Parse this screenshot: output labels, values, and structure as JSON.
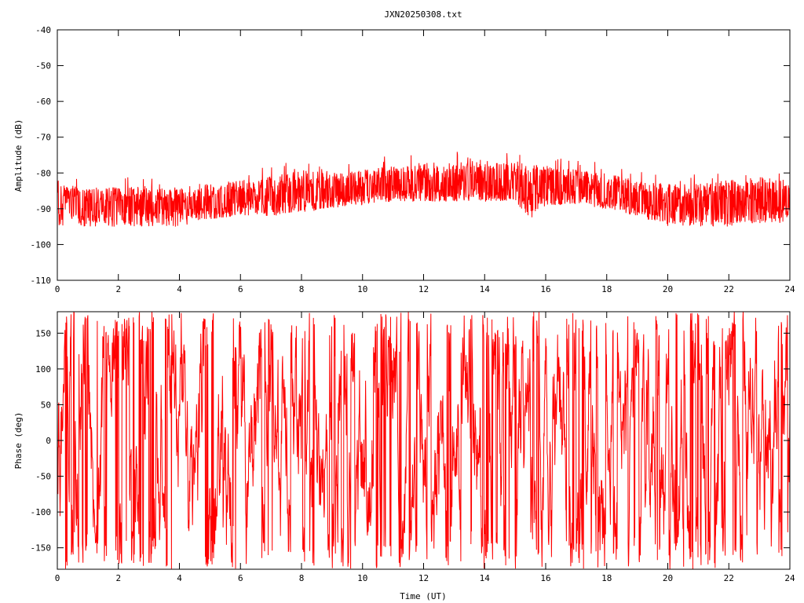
{
  "title": "JXN20250308.txt",
  "colors": {
    "series": "#ff0000",
    "axes": "#000000",
    "background": "#ffffff"
  },
  "chart_data": [
    {
      "type": "line",
      "xlabel": "",
      "ylabel": "Amplitude (dB)",
      "xlim": [
        0,
        24
      ],
      "ylim": [
        -110,
        -40
      ],
      "x_ticks": [
        0,
        2,
        4,
        6,
        8,
        10,
        12,
        14,
        16,
        18,
        20,
        22,
        24
      ],
      "x_tick_labels": [
        "0",
        "2",
        "4",
        "6",
        "8",
        "10",
        "12",
        "14",
        "16",
        "18",
        "20",
        "22",
        "24"
      ],
      "y_ticks": [
        -40,
        -50,
        -60,
        -70,
        -80,
        -90,
        -100,
        -110
      ],
      "y_tick_labels": [
        "-40",
        "-50",
        "-60",
        "-70",
        "-80",
        "-90",
        "-100",
        "-110"
      ],
      "grid": false,
      "series": [
        {
          "x": [
            0,
            1,
            2,
            3,
            4,
            5,
            6,
            7,
            8,
            9,
            10,
            11,
            12,
            13,
            14,
            15,
            15.5,
            16,
            17,
            18,
            19,
            20,
            21,
            22,
            23,
            24
          ],
          "y_center": [
            -89,
            -89,
            -89,
            -89,
            -89,
            -88,
            -87,
            -87,
            -86,
            -86,
            -85,
            -84,
            -84,
            -84,
            -84,
            -84,
            -86,
            -84,
            -84,
            -86,
            -87,
            -89,
            -89,
            -89,
            -88,
            -88
          ],
          "y_min": [
            -95,
            -95,
            -95,
            -95,
            -95,
            -93,
            -92,
            -92,
            -91,
            -90,
            -89,
            -88,
            -88,
            -88,
            -88,
            -88,
            -93,
            -89,
            -89,
            -90,
            -92,
            -95,
            -95,
            -95,
            -94,
            -94
          ],
          "y_max": [
            -83,
            -84,
            -84,
            -84,
            -84,
            -83,
            -82,
            -81,
            -79,
            -80,
            -79,
            -78,
            -77,
            -77,
            -77,
            -77,
            -76,
            -78,
            -79,
            -80,
            -82,
            -83,
            -83,
            -82,
            -81,
            -82
          ]
        }
      ]
    },
    {
      "type": "line",
      "xlabel": "Time (UT)",
      "ylabel": "Phase (deg)",
      "xlim": [
        0,
        24
      ],
      "ylim": [
        -180,
        180
      ],
      "x_ticks": [
        0,
        2,
        4,
        6,
        8,
        10,
        12,
        14,
        16,
        18,
        20,
        22,
        24
      ],
      "x_tick_labels": [
        "0",
        "2",
        "4",
        "6",
        "8",
        "10",
        "12",
        "14",
        "16",
        "18",
        "20",
        "22",
        "24"
      ],
      "y_ticks": [
        150,
        100,
        50,
        0,
        -50,
        -100,
        -150
      ],
      "y_tick_labels": [
        "150",
        "100",
        "50",
        "0",
        "-50",
        "-100",
        "-150"
      ],
      "grid": false,
      "series": [
        {
          "x_range": [
            0,
            24
          ],
          "y_range": [
            -180,
            180
          ]
        }
      ]
    }
  ]
}
